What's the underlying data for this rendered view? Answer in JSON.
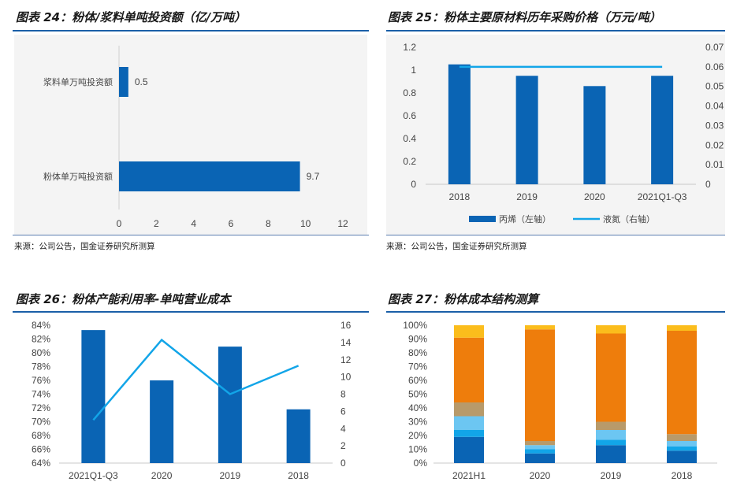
{
  "fig24": {
    "title": "图表 24：粉体/浆料单吨投资额（亿/万吨）",
    "source": "来源：公司公告，国金证券研究所测算",
    "chart_data": {
      "type": "bar",
      "orientation": "horizontal",
      "categories": [
        "浆料单万吨投资额",
        "粉体单万吨投资额"
      ],
      "values": [
        0.5,
        9.7
      ],
      "data_labels": [
        "0.5",
        "9.7"
      ],
      "xlim": [
        0,
        12
      ],
      "xticks": [
        "0",
        "2",
        "4",
        "6",
        "8",
        "10",
        "12"
      ],
      "colors": {
        "bar": "#0a64b4"
      }
    }
  },
  "fig25": {
    "title": "图表 25：粉体主要原材料历年采购价格（万元/吨）",
    "source": "来源：公司公告，国金证券研究所测算",
    "chart_data": {
      "type": "bar",
      "categories": [
        "2018",
        "2019",
        "2020",
        "2021Q1-Q3"
      ],
      "series": [
        {
          "name": "丙烯（左轴）",
          "type": "bar",
          "axis": "left",
          "values": [
            1.05,
            0.95,
            0.86,
            0.95
          ],
          "color": "#0a64b4"
        },
        {
          "name": "液氮（右轴）",
          "type": "line",
          "axis": "right",
          "values": [
            0.06,
            0.06,
            0.06,
            0.06
          ],
          "color": "#12a5e8"
        }
      ],
      "ylim_left": [
        0,
        1.2
      ],
      "ylim_right": [
        0,
        0.07
      ],
      "yticks_left": [
        "0",
        "0.2",
        "0.4",
        "0.6",
        "0.8",
        "1",
        "1.2"
      ],
      "yticks_right": [
        "0",
        "0.01",
        "0.02",
        "0.03",
        "0.04",
        "0.05",
        "0.06",
        "0.07"
      ],
      "legend": "bottom"
    }
  },
  "fig26": {
    "title": "图表 26：粉体产能利用率-单吨营业成本",
    "chart_data": {
      "type": "bar",
      "categories": [
        "2021Q1-Q3",
        "2020",
        "2019",
        "2018"
      ],
      "series": [
        {
          "type": "bar",
          "axis": "left",
          "values": [
            83.3,
            76.0,
            80.9,
            71.8
          ],
          "color": "#0a64b4"
        },
        {
          "type": "line",
          "axis": "right",
          "values": [
            5.0,
            14.3,
            8.0,
            11.3
          ],
          "color": "#12a5e8"
        }
      ],
      "ylim_left": [
        64,
        84
      ],
      "ylim_right": [
        0,
        16
      ],
      "yticks_left": [
        "64%",
        "66%",
        "68%",
        "70%",
        "72%",
        "74%",
        "76%",
        "78%",
        "80%",
        "82%",
        "84%"
      ],
      "yticks_right": [
        "0",
        "2",
        "4",
        "6",
        "8",
        "10",
        "12",
        "14",
        "16"
      ]
    }
  },
  "fig27": {
    "title": "图表 27：粉体成本结构测算",
    "chart_data": {
      "type": "bar",
      "stacked": true,
      "categories": [
        "2021H1",
        "2020",
        "2019",
        "2018"
      ],
      "series": [
        {
          "values": [
            19,
            7,
            13,
            9
          ],
          "color": "#0a64b4"
        },
        {
          "values": [
            5,
            3,
            4,
            3
          ],
          "color": "#12a5e8"
        },
        {
          "values": [
            10,
            3,
            7,
            4
          ],
          "color": "#6cc6f2"
        },
        {
          "values": [
            10,
            3,
            6,
            5
          ],
          "color": "#b89a6a"
        },
        {
          "values": [
            47,
            81,
            64,
            75
          ],
          "color": "#ee7d0c"
        },
        {
          "values": [
            9,
            3,
            6,
            4
          ],
          "color": "#fbbd1c"
        }
      ],
      "ylim": [
        0,
        100
      ],
      "yticks": [
        "0%",
        "10%",
        "20%",
        "30%",
        "40%",
        "50%",
        "60%",
        "70%",
        "80%",
        "90%",
        "100%"
      ]
    }
  }
}
